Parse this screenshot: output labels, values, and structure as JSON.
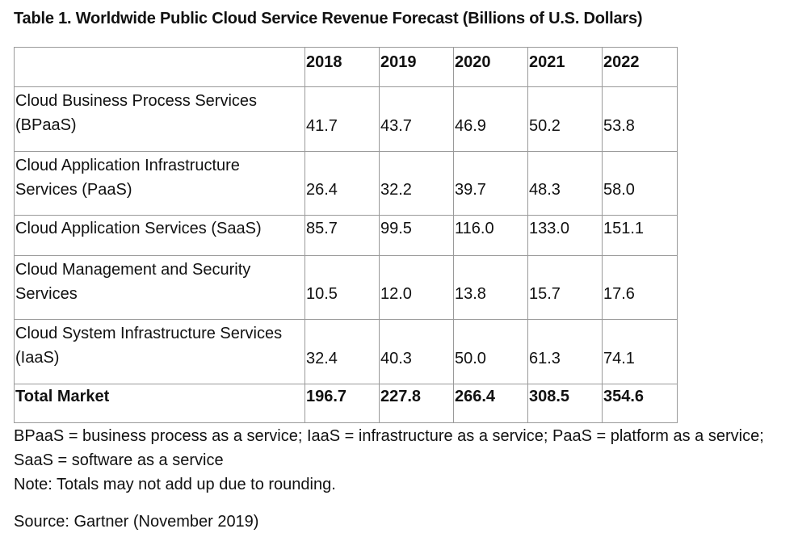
{
  "title": "Table 1. Worldwide Public Cloud Service Revenue Forecast (Billions of U.S. Dollars)",
  "table": {
    "corner": "",
    "years": [
      "2018",
      "2019",
      "2020",
      "2021",
      "2022"
    ],
    "rows": [
      {
        "label": "Cloud Business Process Services (BPaaS)",
        "values": [
          "41.7",
          "43.7",
          "46.9",
          "50.2",
          "53.8"
        ]
      },
      {
        "label": "Cloud Application Infrastructure Services (PaaS)",
        "values": [
          "26.4",
          "32.2",
          "39.7",
          "48.3",
          "58.0"
        ]
      },
      {
        "label": "Cloud Application Services (SaaS)",
        "values": [
          "85.7",
          "99.5",
          "116.0",
          "133.0",
          "151.1"
        ]
      },
      {
        "label": "Cloud Management and Security Services",
        "values": [
          "10.5",
          "12.0",
          "13.8",
          "15.7",
          "17.6"
        ]
      },
      {
        "label": "Cloud System Infrastructure Services (IaaS)",
        "values": [
          "32.4",
          "40.3",
          "50.0",
          "61.3",
          "74.1"
        ]
      }
    ],
    "total": {
      "label": "Total Market",
      "values": [
        "196.7",
        "227.8",
        "266.4",
        "308.5",
        "354.6"
      ]
    }
  },
  "notes": {
    "abbreviations": "BPaaS = business process as a service; IaaS = infrastructure as a service; PaaS = platform as a service; SaaS = software as a service",
    "rounding": "Note: Totals may not add up due to rounding.",
    "source": "Source: Gartner (November 2019)"
  }
}
